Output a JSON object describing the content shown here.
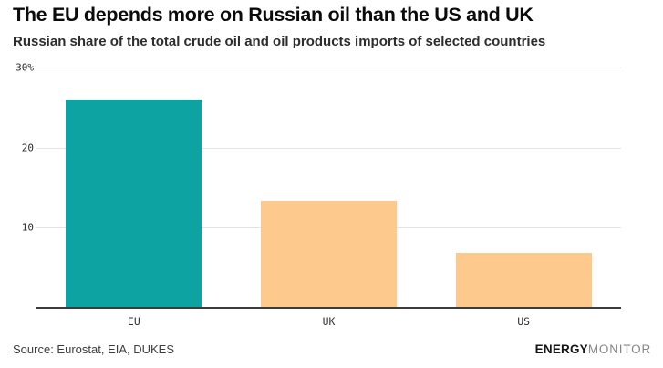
{
  "header": {
    "title": "The EU depends more on Russian oil than the US and UK",
    "subtitle": "Russian share of the total crude oil and oil products imports of selected countries"
  },
  "chart_data": {
    "type": "bar",
    "title": "The EU depends more on Russian oil than the US and UK",
    "subtitle": "Russian share of the total crude oil and oil products imports of selected countries",
    "categories": [
      "EU",
      "UK",
      "US"
    ],
    "values": [
      26,
      13.4,
      6.9
    ],
    "bar_colors": [
      "#0da3a3",
      "#fdc98d",
      "#fdc98d"
    ],
    "xlabel": "",
    "ylabel": "",
    "unit": "%",
    "ylim": [
      0,
      30
    ],
    "yticks": [
      {
        "value": 10,
        "label": "10"
      },
      {
        "value": 20,
        "label": "20"
      },
      {
        "value": 30,
        "label": "30%"
      }
    ],
    "grid": "horizontal",
    "legend": "none"
  },
  "footer": {
    "source": "Source: Eurostat, EIA, DUKES",
    "logo": {
      "bold": "ENERGY",
      "light": "MONITOR"
    }
  },
  "colors": {
    "teal": "#0da3a3",
    "orange": "#fdc98d",
    "gridline": "#e4e4e4",
    "axis_line": "#3c3c3c",
    "title_text": "#0b0b0b",
    "muted_text": "#3d3d3d",
    "logo_gray": "#878787"
  }
}
